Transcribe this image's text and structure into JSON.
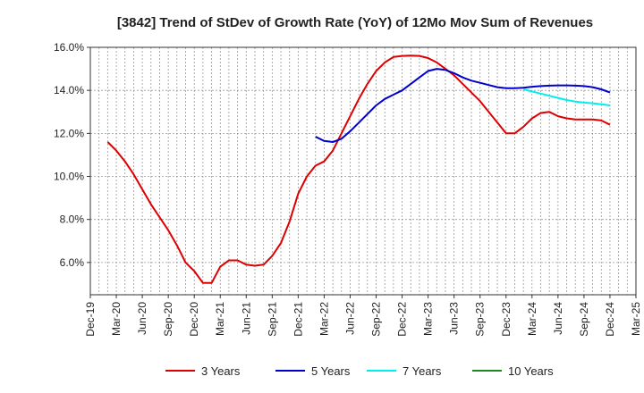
{
  "chart_data": {
    "type": "line",
    "title": "[3842]  Trend of StDev of Growth Rate (YoY) of 12Mo Mov Sum of Revenues",
    "xlabel": "",
    "ylabel": "",
    "ylim": [
      4.5,
      16.0
    ],
    "yticks": [
      6.0,
      8.0,
      10.0,
      12.0,
      14.0,
      16.0
    ],
    "ytick_labels": [
      "6.0%",
      "8.0%",
      "10.0%",
      "12.0%",
      "14.0%",
      "16.0%"
    ],
    "xlim": [
      0,
      63
    ],
    "xticks": [
      0,
      3,
      6,
      9,
      12,
      15,
      18,
      21,
      24,
      27,
      30,
      33,
      36,
      39,
      42,
      45,
      48,
      51,
      54,
      57,
      60,
      63
    ],
    "xtick_labels": [
      "Dec-19",
      "Mar-20",
      "Jun-20",
      "Sep-20",
      "Dec-20",
      "Mar-21",
      "Jun-21",
      "Sep-21",
      "Dec-21",
      "Mar-22",
      "Jun-22",
      "Sep-22",
      "Dec-22",
      "Mar-23",
      "Jun-23",
      "Sep-23",
      "Dec-23",
      "Mar-24",
      "Jun-24",
      "Sep-24",
      "Dec-24",
      "Mar-25"
    ],
    "grid": true,
    "legend_position": "bottom",
    "series": [
      {
        "name": "3 Years",
        "color": "#dd0000",
        "x": [
          2,
          3,
          4,
          5,
          6,
          7,
          8,
          9,
          10,
          11,
          12,
          13,
          14,
          15,
          16,
          17,
          18,
          19,
          20,
          21,
          22,
          23,
          24,
          25,
          26,
          27,
          28,
          29,
          30,
          31,
          32,
          33,
          34,
          35,
          36,
          37,
          38,
          39,
          40,
          41,
          42,
          43,
          44,
          45,
          46,
          47,
          48,
          49,
          50,
          51,
          52,
          53,
          54,
          55,
          56,
          57,
          58,
          59,
          60
        ],
        "values": [
          11.6,
          11.2,
          10.7,
          10.1,
          9.4,
          8.7,
          8.1,
          7.5,
          6.8,
          6.0,
          5.6,
          5.05,
          5.05,
          5.8,
          6.1,
          6.1,
          5.9,
          5.85,
          5.9,
          6.3,
          6.9,
          7.9,
          9.2,
          10.0,
          10.5,
          10.7,
          11.2,
          12.0,
          12.8,
          13.6,
          14.3,
          14.9,
          15.3,
          15.55,
          15.6,
          15.62,
          15.6,
          15.5,
          15.3,
          15.0,
          14.7,
          14.3,
          13.9,
          13.5,
          13.0,
          12.5,
          12.0,
          12.0,
          12.3,
          12.7,
          12.95,
          13.0,
          12.8,
          12.7,
          12.65,
          12.65,
          12.65,
          12.6,
          12.4
        ]
      },
      {
        "name": "5 Years",
        "color": "#0000cc",
        "x": [
          26,
          27,
          28,
          29,
          30,
          31,
          32,
          33,
          34,
          35,
          36,
          37,
          38,
          39,
          40,
          41,
          42,
          43,
          44,
          45,
          46,
          47,
          48,
          49,
          50,
          51,
          52,
          53,
          54,
          55,
          56,
          57,
          58,
          59,
          60
        ],
        "values": [
          11.85,
          11.65,
          11.6,
          11.75,
          12.1,
          12.5,
          12.9,
          13.3,
          13.6,
          13.8,
          14.0,
          14.3,
          14.6,
          14.9,
          15.0,
          14.95,
          14.8,
          14.6,
          14.45,
          14.35,
          14.25,
          14.15,
          14.1,
          14.1,
          14.12,
          14.17,
          14.2,
          14.22,
          14.23,
          14.23,
          14.22,
          14.2,
          14.15,
          14.05,
          13.9
        ]
      },
      {
        "name": "7 Years",
        "color": "#00eeee",
        "x": [
          50,
          51,
          52,
          53,
          54,
          55,
          56,
          57,
          58,
          59,
          60
        ],
        "values": [
          14.05,
          13.95,
          13.85,
          13.75,
          13.65,
          13.55,
          13.48,
          13.43,
          13.4,
          13.35,
          13.3
        ]
      },
      {
        "name": "10 Years",
        "color": "#228822",
        "x": [],
        "values": []
      }
    ]
  }
}
